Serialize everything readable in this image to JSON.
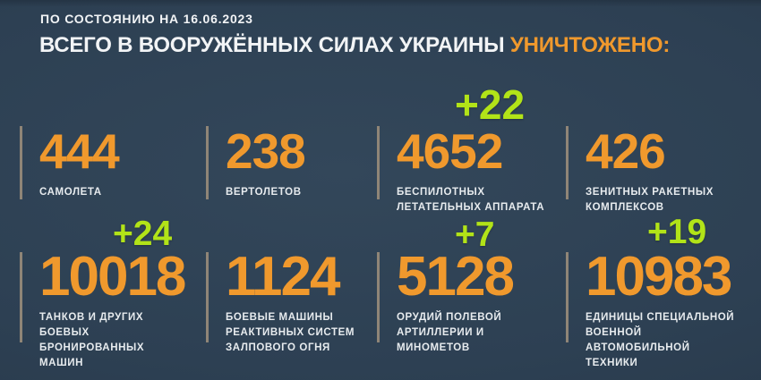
{
  "header": {
    "date_line": "ПО СОСТОЯНИЮ НА 16.06.2023",
    "title_white": "ВСЕГО В ВООРУЖЁННЫХ СИЛАХ УКРАИНЫ",
    "title_accent": "УНИЧТОЖЕНО:"
  },
  "colors": {
    "background": "#2d4053",
    "accent_orange": "#f0992d",
    "delta_green": "#b2e318",
    "divider": "#8f8577",
    "title_text": "#f2f4f6",
    "label_text": "#e7ebee"
  },
  "stats": [
    {
      "value": "444",
      "delta": null,
      "label_lines": [
        "САМОЛЕТА"
      ]
    },
    {
      "value": "238",
      "delta": null,
      "label_lines": [
        "ВЕРТОЛЕТОВ"
      ]
    },
    {
      "value": "4652",
      "delta": "+22",
      "label_lines": [
        "БЕСПИЛОТНЫХ",
        "ЛЕТАТЕЛЬНЫХ АППАРАТА"
      ]
    },
    {
      "value": "426",
      "delta": null,
      "label_lines": [
        "ЗЕНИТНЫХ РАКЕТНЫХ",
        "КОМПЛЕКСОВ"
      ]
    },
    {
      "value": "10018",
      "delta": "+24",
      "label_lines": [
        "ТАНКОВ И ДРУГИХ БОЕВЫХ",
        "БРОНИРОВАННЫХ МАШИН"
      ]
    },
    {
      "value": "1124",
      "delta": null,
      "label_lines": [
        "БОЕВЫЕ МАШИНЫ",
        "РЕАКТИВНЫХ СИСТЕМ",
        "ЗАЛПОВОГО ОГНЯ"
      ]
    },
    {
      "value": "5128",
      "delta": "+7",
      "label_lines": [
        "ОРУДИЙ ПОЛЕВОЙ",
        "АРТИЛЛЕРИИ И МИНОМЕТОВ"
      ]
    },
    {
      "value": "10983",
      "delta": "+19",
      "label_lines": [
        "ЕДИНИЦЫ СПЕЦИАЛЬНОЙ",
        "ВОЕННОЙ АВТОМОБИЛЬНОЙ",
        "ТЕХНИКИ"
      ]
    }
  ],
  "chart_data": {
    "type": "table",
    "title": "ВСЕГО В ВООРУЖЁННЫХ СИЛАХ УКРАИНЫ УНИЧТОЖЕНО:",
    "subtitle": "ПО СОСТОЯНИЮ НА 16.06.2023",
    "categories": [
      "самолета",
      "вертолетов",
      "беспилотных летательных аппарата",
      "зенитных ракетных комплексов",
      "танков и других боевых бронированных машин",
      "боевые машины реактивных систем залпового огня",
      "орудий полевой артиллерии и минометов",
      "единицы специальной военной автомобильной техники"
    ],
    "values": [
      444,
      238,
      4652,
      426,
      10018,
      1124,
      5128,
      10983
    ],
    "deltas": [
      null,
      null,
      22,
      null,
      24,
      null,
      7,
      19
    ],
    "legend_position": "none",
    "grid": false
  }
}
